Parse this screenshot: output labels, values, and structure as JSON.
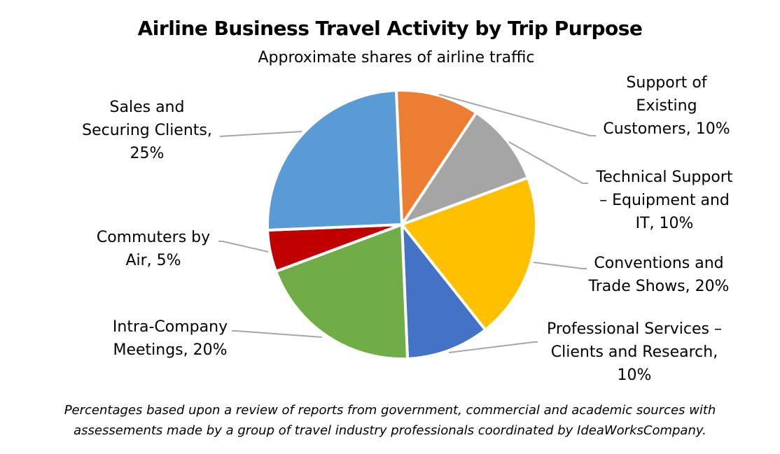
{
  "header": {
    "title": "Airline Business Travel Activity by Trip Purpose",
    "subtitle": "Approximate shares of airline traffic"
  },
  "footnote": {
    "line1": "Percentages based upon a review of reports from government, commercial and academic sources with",
    "line2": "assessements made by a group of travel industry professionals coordinated by IdeaWorksCompany."
  },
  "labels": {
    "support_existing": {
      "l1": "Support of",
      "l2": "Existing",
      "l3": "Customers, 10%"
    },
    "technical_support": {
      "l1": "Technical Support",
      "l2": "– Equipment and",
      "l3": "IT, 10%"
    },
    "conventions": {
      "l1": "Conventions and",
      "l2": "Trade Shows, 20%"
    },
    "professional": {
      "l1": "Professional Services –",
      "l2": "Clients and Research,",
      "l3": "10%"
    },
    "intra_company": {
      "l1": "Intra-Company",
      "l2": "Meetings, 20%"
    },
    "commuters": {
      "l1": "Commuters by",
      "l2": "Air, 5%"
    },
    "sales": {
      "l1": "Sales and",
      "l2": "Securing Clients,",
      "l3": "25%"
    }
  },
  "colors": {
    "leader_line": "#A6A6A6",
    "slice_border": "#FFFFFF"
  },
  "chart_data": {
    "type": "pie",
    "title": "Airline Business Travel Activity by Trip Purpose",
    "subtitle": "Approximate shares of airline traffic",
    "unit": "%",
    "start_angle_deg": -2.4,
    "direction": "clockwise",
    "categories": [
      "Support of Existing Customers",
      "Technical Support – Equipment and IT",
      "Conventions and Trade Shows",
      "Professional Services – Clients and Research",
      "Intra-Company Meetings",
      "Commuters by Air",
      "Sales and Securing Clients"
    ],
    "values": [
      10,
      10,
      20,
      10,
      20,
      5,
      25
    ],
    "colors": [
      "#ED7D31",
      "#A5A5A5",
      "#FFC000",
      "#4472C4",
      "#70AD47",
      "#C00000",
      "#5B9BD5"
    ],
    "legend": "none (data labels with leader lines)",
    "center": [
      574,
      321
    ],
    "radius": 192
  }
}
